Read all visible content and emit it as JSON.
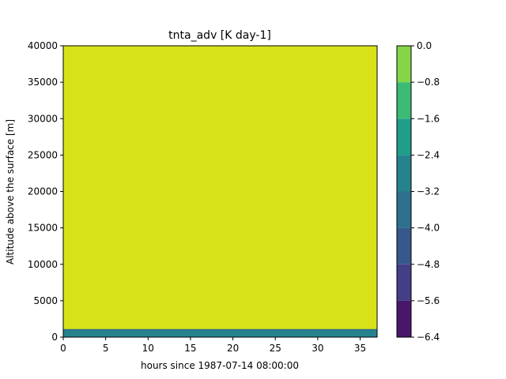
{
  "chart_data": {
    "type": "heatmap",
    "title": "tnta_adv [K day-1]",
    "xlabel": "hours since 1987-07-14 08:00:00",
    "ylabel": "Altitude above the surface [m]",
    "xlim": [
      0,
      37
    ],
    "ylim": [
      0,
      40000
    ],
    "xticks": [
      "0",
      "5",
      "10",
      "15",
      "20",
      "25",
      "30",
      "35"
    ],
    "xtick_values": [
      0,
      5,
      10,
      15,
      20,
      25,
      30,
      35
    ],
    "yticks": [
      "0",
      "5000",
      "10000",
      "15000",
      "20000",
      "25000",
      "30000",
      "35000",
      "40000"
    ],
    "ytick_values": [
      0,
      5000,
      10000,
      15000,
      20000,
      25000,
      30000,
      35000,
      40000
    ],
    "layers": [
      {
        "y0": 0,
        "y1": 1000,
        "level_bin": [
          -4.0,
          -3.2
        ],
        "color": "#25838e"
      },
      {
        "y0": 1000,
        "y1": 40000,
        "level_bin": [
          -0.8,
          0.0
        ],
        "color": "#d8e219"
      }
    ],
    "colorbar": {
      "levels": [
        -6.4,
        -5.6,
        -4.8,
        -4.0,
        -3.2,
        -2.4,
        -1.6,
        -0.8,
        0.0
      ],
      "labels": [
        "−6.4",
        "−5.6",
        "−4.8",
        "−4.0",
        "−3.2",
        "−2.4",
        "−1.6",
        "−0.8",
        "0.0"
      ],
      "colors": [
        "#481769",
        "#433e85",
        "#38588c",
        "#2d708e",
        "#25838e",
        "#1f9e89",
        "#3bbb75",
        "#86d549",
        "#d8e219"
      ]
    },
    "grid": false
  }
}
